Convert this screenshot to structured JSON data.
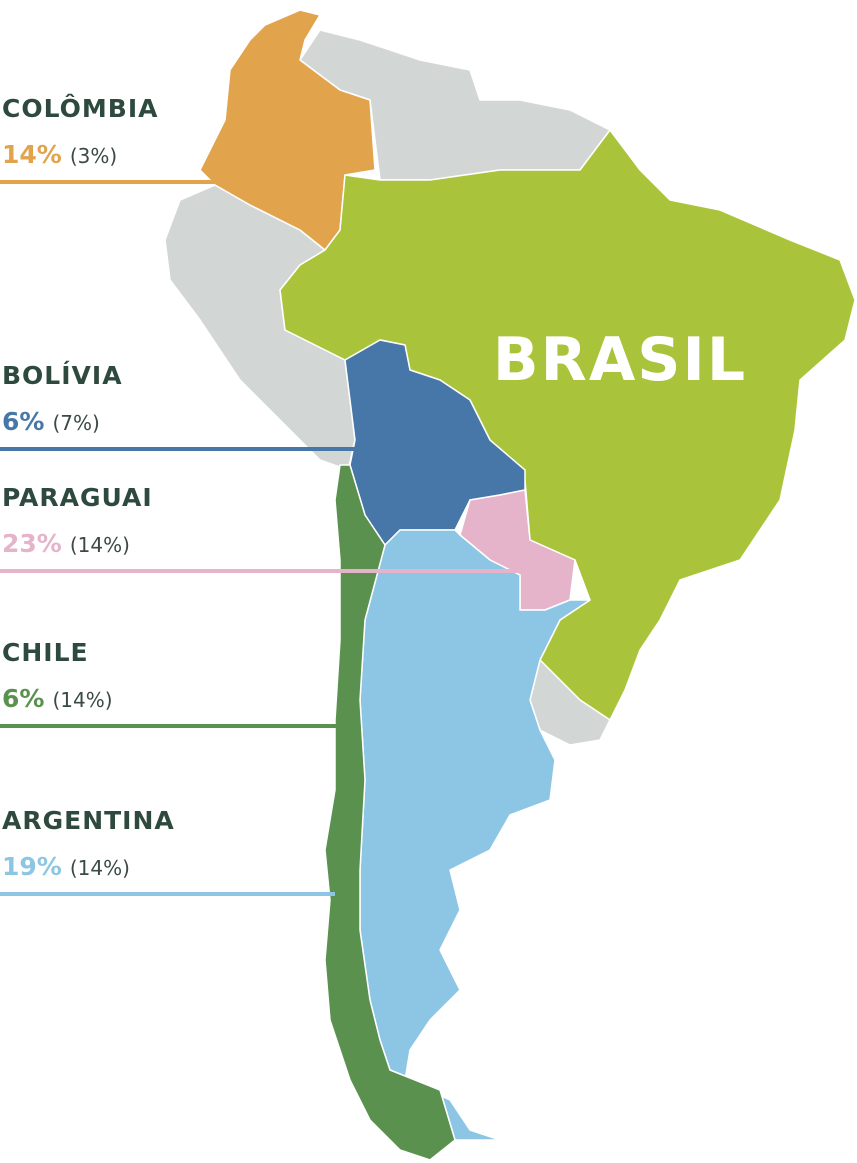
{
  "highlight": "BRASIL",
  "countries": [
    {
      "name": "COLÔMBIA",
      "share": "14%",
      "share_secondary": "(3%)"
    },
    {
      "name": "BOLÍVIA",
      "share": "6%",
      "share_secondary": "(7%)"
    },
    {
      "name": "PARAGUAI",
      "share": "23%",
      "share_secondary": "(14%)"
    },
    {
      "name": "CHILE",
      "share": "6%",
      "share_secondary": "(14%)"
    },
    {
      "name": "ARGENTINA",
      "share": "19%",
      "share_secondary": "(14%)"
    }
  ]
}
